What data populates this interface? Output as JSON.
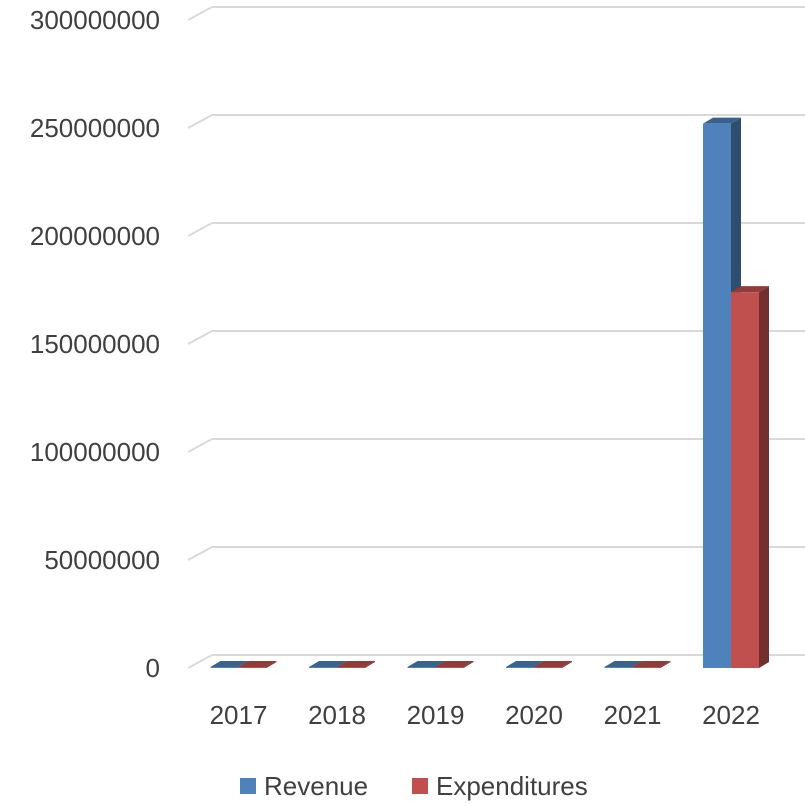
{
  "chart_data": {
    "type": "bar",
    "categories": [
      "2017",
      "2018",
      "2019",
      "2020",
      "2021",
      "2022"
    ],
    "series": [
      {
        "name": "Revenue",
        "values": [
          0,
          0,
          0,
          0,
          0,
          252000000
        ]
      },
      {
        "name": "Expenditures",
        "values": [
          0,
          0,
          0,
          0,
          0,
          174000000
        ]
      }
    ],
    "y_ticks": [
      "0",
      "50000000",
      "100000000",
      "150000000",
      "200000000",
      "250000000",
      "300000000"
    ],
    "ylim": [
      0,
      300000000
    ],
    "grid": true,
    "legend_position": "bottom",
    "colors": {
      "Revenue": "#4f81bd",
      "Expenditures": "#c0504d",
      "gridline": "#d9d9d9"
    }
  }
}
